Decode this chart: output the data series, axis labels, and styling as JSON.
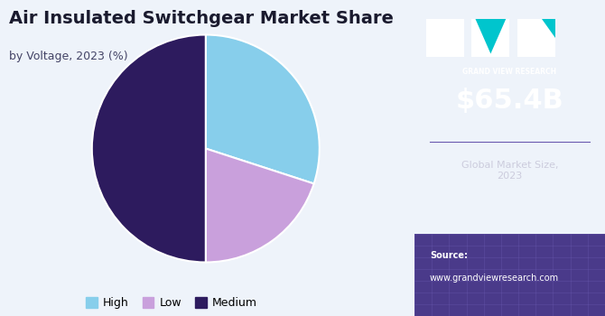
{
  "title": "Air Insulated Switchgear Market Share",
  "subtitle": "by Voltage, 2023 (%)",
  "segments": [
    "High",
    "Low",
    "Medium"
  ],
  "values": [
    30,
    20,
    50
  ],
  "colors": [
    "#87CEEB",
    "#C9A0DC",
    "#2D1B5E"
  ],
  "bg_color": "#EEF3FA",
  "right_panel_color": "#3B1F6B",
  "market_size": "$65.4B",
  "market_label": "Global Market Size,\n2023",
  "source_label": "Source:",
  "source_url": "www.grandviewresearch.com",
  "legend_labels": [
    "High",
    "Low",
    "Medium"
  ],
  "legend_colors": [
    "#87CEEB",
    "#C9A0DC",
    "#2D1B5E"
  ]
}
